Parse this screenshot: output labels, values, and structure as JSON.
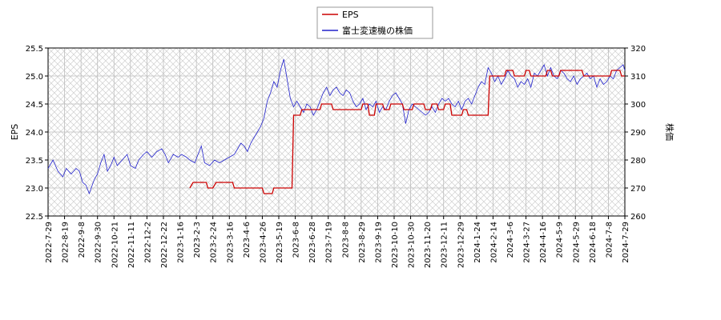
{
  "chart_data": {
    "type": "line",
    "title": "",
    "xlabel": "",
    "ylabel_left": "EPS",
    "ylabel_right": "株価",
    "x_tick_labels": [
      "2022-7-29",
      "2022-8-19",
      "2022-9-8",
      "2022-9-30",
      "2022-10-21",
      "2022-11-11",
      "2022-12-2",
      "2022-12-22",
      "2023-1-16",
      "2023-2-3",
      "2023-2-24",
      "2023-3-16",
      "2023-4-6",
      "2023-4-26",
      "2023-5-19",
      "2023-6-8",
      "2023-6-28",
      "2023-7-19",
      "2023-8-8",
      "2023-8-29",
      "2023-9-19",
      "2023-10-10",
      "2023-10-30",
      "2023-11-20",
      "2023-12-11",
      "2023-12-29",
      "2024-1-24",
      "2024-2-14",
      "2024-3-6",
      "2024-3-27",
      "2024-4-16",
      "2024-5-9",
      "2024-5-29",
      "2024-6-18",
      "2024-7-8",
      "2024-7-29"
    ],
    "y_left": {
      "min": 22.5,
      "max": 25.5,
      "ticks": [
        22.5,
        23.0,
        23.5,
        24.0,
        24.5,
        25.0,
        25.5
      ],
      "tick_labels": [
        "22.5",
        "23.0",
        "23.5",
        "24.0",
        "24.5",
        "25.0",
        "25.5"
      ]
    },
    "y_right": {
      "min": 260,
      "max": 320,
      "ticks": [
        260,
        270,
        280,
        290,
        300,
        310,
        320
      ],
      "tick_labels": [
        "260",
        "270",
        "280",
        "290",
        "300",
        "310",
        "320"
      ]
    },
    "grid": true,
    "legend_position": "top-center",
    "series": [
      {
        "name": "EPS",
        "axis": "left",
        "color": "#cc0000",
        "points": [
          [
            8.6,
            23.0
          ],
          [
            8.8,
            23.1
          ],
          [
            9.6,
            23.1
          ],
          [
            9.7,
            23.0
          ],
          [
            10.0,
            23.0
          ],
          [
            10.2,
            23.1
          ],
          [
            11.2,
            23.1
          ],
          [
            11.3,
            23.0
          ],
          [
            13.0,
            23.0
          ],
          [
            13.1,
            22.9
          ],
          [
            13.6,
            22.9
          ],
          [
            13.7,
            23.0
          ],
          [
            14.8,
            23.0
          ],
          [
            14.9,
            24.3
          ],
          [
            15.3,
            24.3
          ],
          [
            15.4,
            24.4
          ],
          [
            16.5,
            24.4
          ],
          [
            16.6,
            24.5
          ],
          [
            17.2,
            24.5
          ],
          [
            17.3,
            24.4
          ],
          [
            19.0,
            24.4
          ],
          [
            19.1,
            24.5
          ],
          [
            19.4,
            24.5
          ],
          [
            19.5,
            24.3
          ],
          [
            19.8,
            24.3
          ],
          [
            19.9,
            24.5
          ],
          [
            20.3,
            24.5
          ],
          [
            20.4,
            24.4
          ],
          [
            20.7,
            24.4
          ],
          [
            20.8,
            24.5
          ],
          [
            21.5,
            24.5
          ],
          [
            21.6,
            24.4
          ],
          [
            22.1,
            24.4
          ],
          [
            22.2,
            24.5
          ],
          [
            22.8,
            24.5
          ],
          [
            22.9,
            24.4
          ],
          [
            23.2,
            24.4
          ],
          [
            23.3,
            24.5
          ],
          [
            23.6,
            24.5
          ],
          [
            23.7,
            24.4
          ],
          [
            24.0,
            24.4
          ],
          [
            24.1,
            24.5
          ],
          [
            24.4,
            24.5
          ],
          [
            24.5,
            24.3
          ],
          [
            25.1,
            24.3
          ],
          [
            25.2,
            24.4
          ],
          [
            25.4,
            24.4
          ],
          [
            25.5,
            24.3
          ],
          [
            26.7,
            24.3
          ],
          [
            26.8,
            25.0
          ],
          [
            27.7,
            25.0
          ],
          [
            27.8,
            25.1
          ],
          [
            28.2,
            25.1
          ],
          [
            28.3,
            25.0
          ],
          [
            28.9,
            25.0
          ],
          [
            29.0,
            25.1
          ],
          [
            29.2,
            25.1
          ],
          [
            29.3,
            25.0
          ],
          [
            30.2,
            25.0
          ],
          [
            30.3,
            25.1
          ],
          [
            30.5,
            25.1
          ],
          [
            30.6,
            25.0
          ],
          [
            31.0,
            25.0
          ],
          [
            31.1,
            25.1
          ],
          [
            32.4,
            25.1
          ],
          [
            32.5,
            25.0
          ],
          [
            34.1,
            25.0
          ],
          [
            34.2,
            25.1
          ],
          [
            34.7,
            25.1
          ],
          [
            34.8,
            25.0
          ],
          [
            35.0,
            25.0
          ]
        ]
      },
      {
        "name": "富士変速機の株価",
        "axis": "right",
        "color": "#2222cc",
        "points": [
          [
            0.0,
            277
          ],
          [
            0.3,
            280
          ],
          [
            0.6,
            276
          ],
          [
            0.9,
            274
          ],
          [
            1.1,
            277
          ],
          [
            1.4,
            275
          ],
          [
            1.7,
            277
          ],
          [
            1.9,
            276
          ],
          [
            2.1,
            272
          ],
          [
            2.3,
            271
          ],
          [
            2.5,
            268
          ],
          [
            2.8,
            273
          ],
          [
            3.0,
            275
          ],
          [
            3.2,
            279
          ],
          [
            3.4,
            282
          ],
          [
            3.6,
            276
          ],
          [
            3.8,
            278
          ],
          [
            4.0,
            281
          ],
          [
            4.2,
            278
          ],
          [
            4.5,
            280
          ],
          [
            4.8,
            282
          ],
          [
            5.0,
            278
          ],
          [
            5.3,
            277
          ],
          [
            5.5,
            280
          ],
          [
            5.8,
            282
          ],
          [
            6.0,
            283
          ],
          [
            6.3,
            281
          ],
          [
            6.6,
            283
          ],
          [
            6.9,
            284
          ],
          [
            7.1,
            282
          ],
          [
            7.3,
            279
          ],
          [
            7.6,
            282
          ],
          [
            7.9,
            281
          ],
          [
            8.1,
            282
          ],
          [
            8.4,
            281
          ],
          [
            8.6,
            280
          ],
          [
            8.9,
            279
          ],
          [
            9.1,
            282
          ],
          [
            9.3,
            285
          ],
          [
            9.5,
            279
          ],
          [
            9.8,
            278
          ],
          [
            10.1,
            280
          ],
          [
            10.4,
            279
          ],
          [
            10.7,
            280
          ],
          [
            11.0,
            281
          ],
          [
            11.3,
            282
          ],
          [
            11.5,
            284
          ],
          [
            11.7,
            286
          ],
          [
            11.9,
            285
          ],
          [
            12.1,
            283
          ],
          [
            12.3,
            286
          ],
          [
            12.5,
            288
          ],
          [
            12.7,
            290
          ],
          [
            12.9,
            292
          ],
          [
            13.1,
            295
          ],
          [
            13.3,
            301
          ],
          [
            13.5,
            304
          ],
          [
            13.7,
            308
          ],
          [
            13.9,
            306
          ],
          [
            14.1,
            312
          ],
          [
            14.3,
            316
          ],
          [
            14.5,
            309
          ],
          [
            14.7,
            302
          ],
          [
            14.9,
            299
          ],
          [
            15.1,
            301
          ],
          [
            15.3,
            299
          ],
          [
            15.5,
            297
          ],
          [
            15.7,
            300
          ],
          [
            15.9,
            299
          ],
          [
            16.1,
            296
          ],
          [
            16.3,
            298
          ],
          [
            16.5,
            301
          ],
          [
            16.7,
            304
          ],
          [
            16.9,
            306
          ],
          [
            17.1,
            303
          ],
          [
            17.3,
            305
          ],
          [
            17.5,
            306
          ],
          [
            17.7,
            304
          ],
          [
            17.9,
            303
          ],
          [
            18.1,
            305
          ],
          [
            18.3,
            304
          ],
          [
            18.5,
            301
          ],
          [
            18.7,
            299
          ],
          [
            18.9,
            300
          ],
          [
            19.1,
            302
          ],
          [
            19.3,
            298
          ],
          [
            19.5,
            300
          ],
          [
            19.7,
            299
          ],
          [
            19.9,
            301
          ],
          [
            20.1,
            297
          ],
          [
            20.3,
            299
          ],
          [
            20.5,
            298
          ],
          [
            20.7,
            301
          ],
          [
            20.9,
            303
          ],
          [
            21.1,
            304
          ],
          [
            21.3,
            302
          ],
          [
            21.5,
            300
          ],
          [
            21.7,
            293
          ],
          [
            21.9,
            298
          ],
          [
            22.1,
            300
          ],
          [
            22.3,
            299
          ],
          [
            22.5,
            298
          ],
          [
            22.7,
            297
          ],
          [
            22.9,
            296
          ],
          [
            23.1,
            297
          ],
          [
            23.3,
            299
          ],
          [
            23.5,
            297
          ],
          [
            23.7,
            300
          ],
          [
            23.9,
            302
          ],
          [
            24.1,
            301
          ],
          [
            24.3,
            302
          ],
          [
            24.5,
            300
          ],
          [
            24.7,
            299
          ],
          [
            24.9,
            301
          ],
          [
            25.1,
            298
          ],
          [
            25.3,
            301
          ],
          [
            25.5,
            302
          ],
          [
            25.7,
            300
          ],
          [
            25.9,
            303
          ],
          [
            26.1,
            306
          ],
          [
            26.3,
            308
          ],
          [
            26.5,
            307
          ],
          [
            26.7,
            313
          ],
          [
            26.9,
            311
          ],
          [
            27.1,
            308
          ],
          [
            27.3,
            310
          ],
          [
            27.5,
            307
          ],
          [
            27.7,
            309
          ],
          [
            27.9,
            312
          ],
          [
            28.1,
            310
          ],
          [
            28.3,
            309
          ],
          [
            28.5,
            306
          ],
          [
            28.7,
            308
          ],
          [
            28.9,
            307
          ],
          [
            29.1,
            309
          ],
          [
            29.3,
            306
          ],
          [
            29.5,
            311
          ],
          [
            29.7,
            310
          ],
          [
            29.9,
            312
          ],
          [
            30.1,
            314
          ],
          [
            30.3,
            310
          ],
          [
            30.5,
            313
          ],
          [
            30.7,
            310
          ],
          [
            30.9,
            309
          ],
          [
            31.1,
            312
          ],
          [
            31.3,
            311
          ],
          [
            31.5,
            309
          ],
          [
            31.7,
            308
          ],
          [
            31.9,
            310
          ],
          [
            32.1,
            307
          ],
          [
            32.3,
            309
          ],
          [
            32.5,
            310
          ],
          [
            32.7,
            311
          ],
          [
            32.9,
            309
          ],
          [
            33.1,
            310
          ],
          [
            33.3,
            306
          ],
          [
            33.5,
            309
          ],
          [
            33.7,
            307
          ],
          [
            33.9,
            308
          ],
          [
            34.1,
            310
          ],
          [
            34.3,
            309
          ],
          [
            34.5,
            312
          ],
          [
            34.7,
            313
          ],
          [
            34.9,
            314
          ],
          [
            35.0,
            312
          ]
        ]
      }
    ]
  },
  "legend": {
    "items": [
      {
        "label": "EPS",
        "color": "#cc0000"
      },
      {
        "label": "富士変速機の株価",
        "color": "#2222cc"
      }
    ]
  }
}
